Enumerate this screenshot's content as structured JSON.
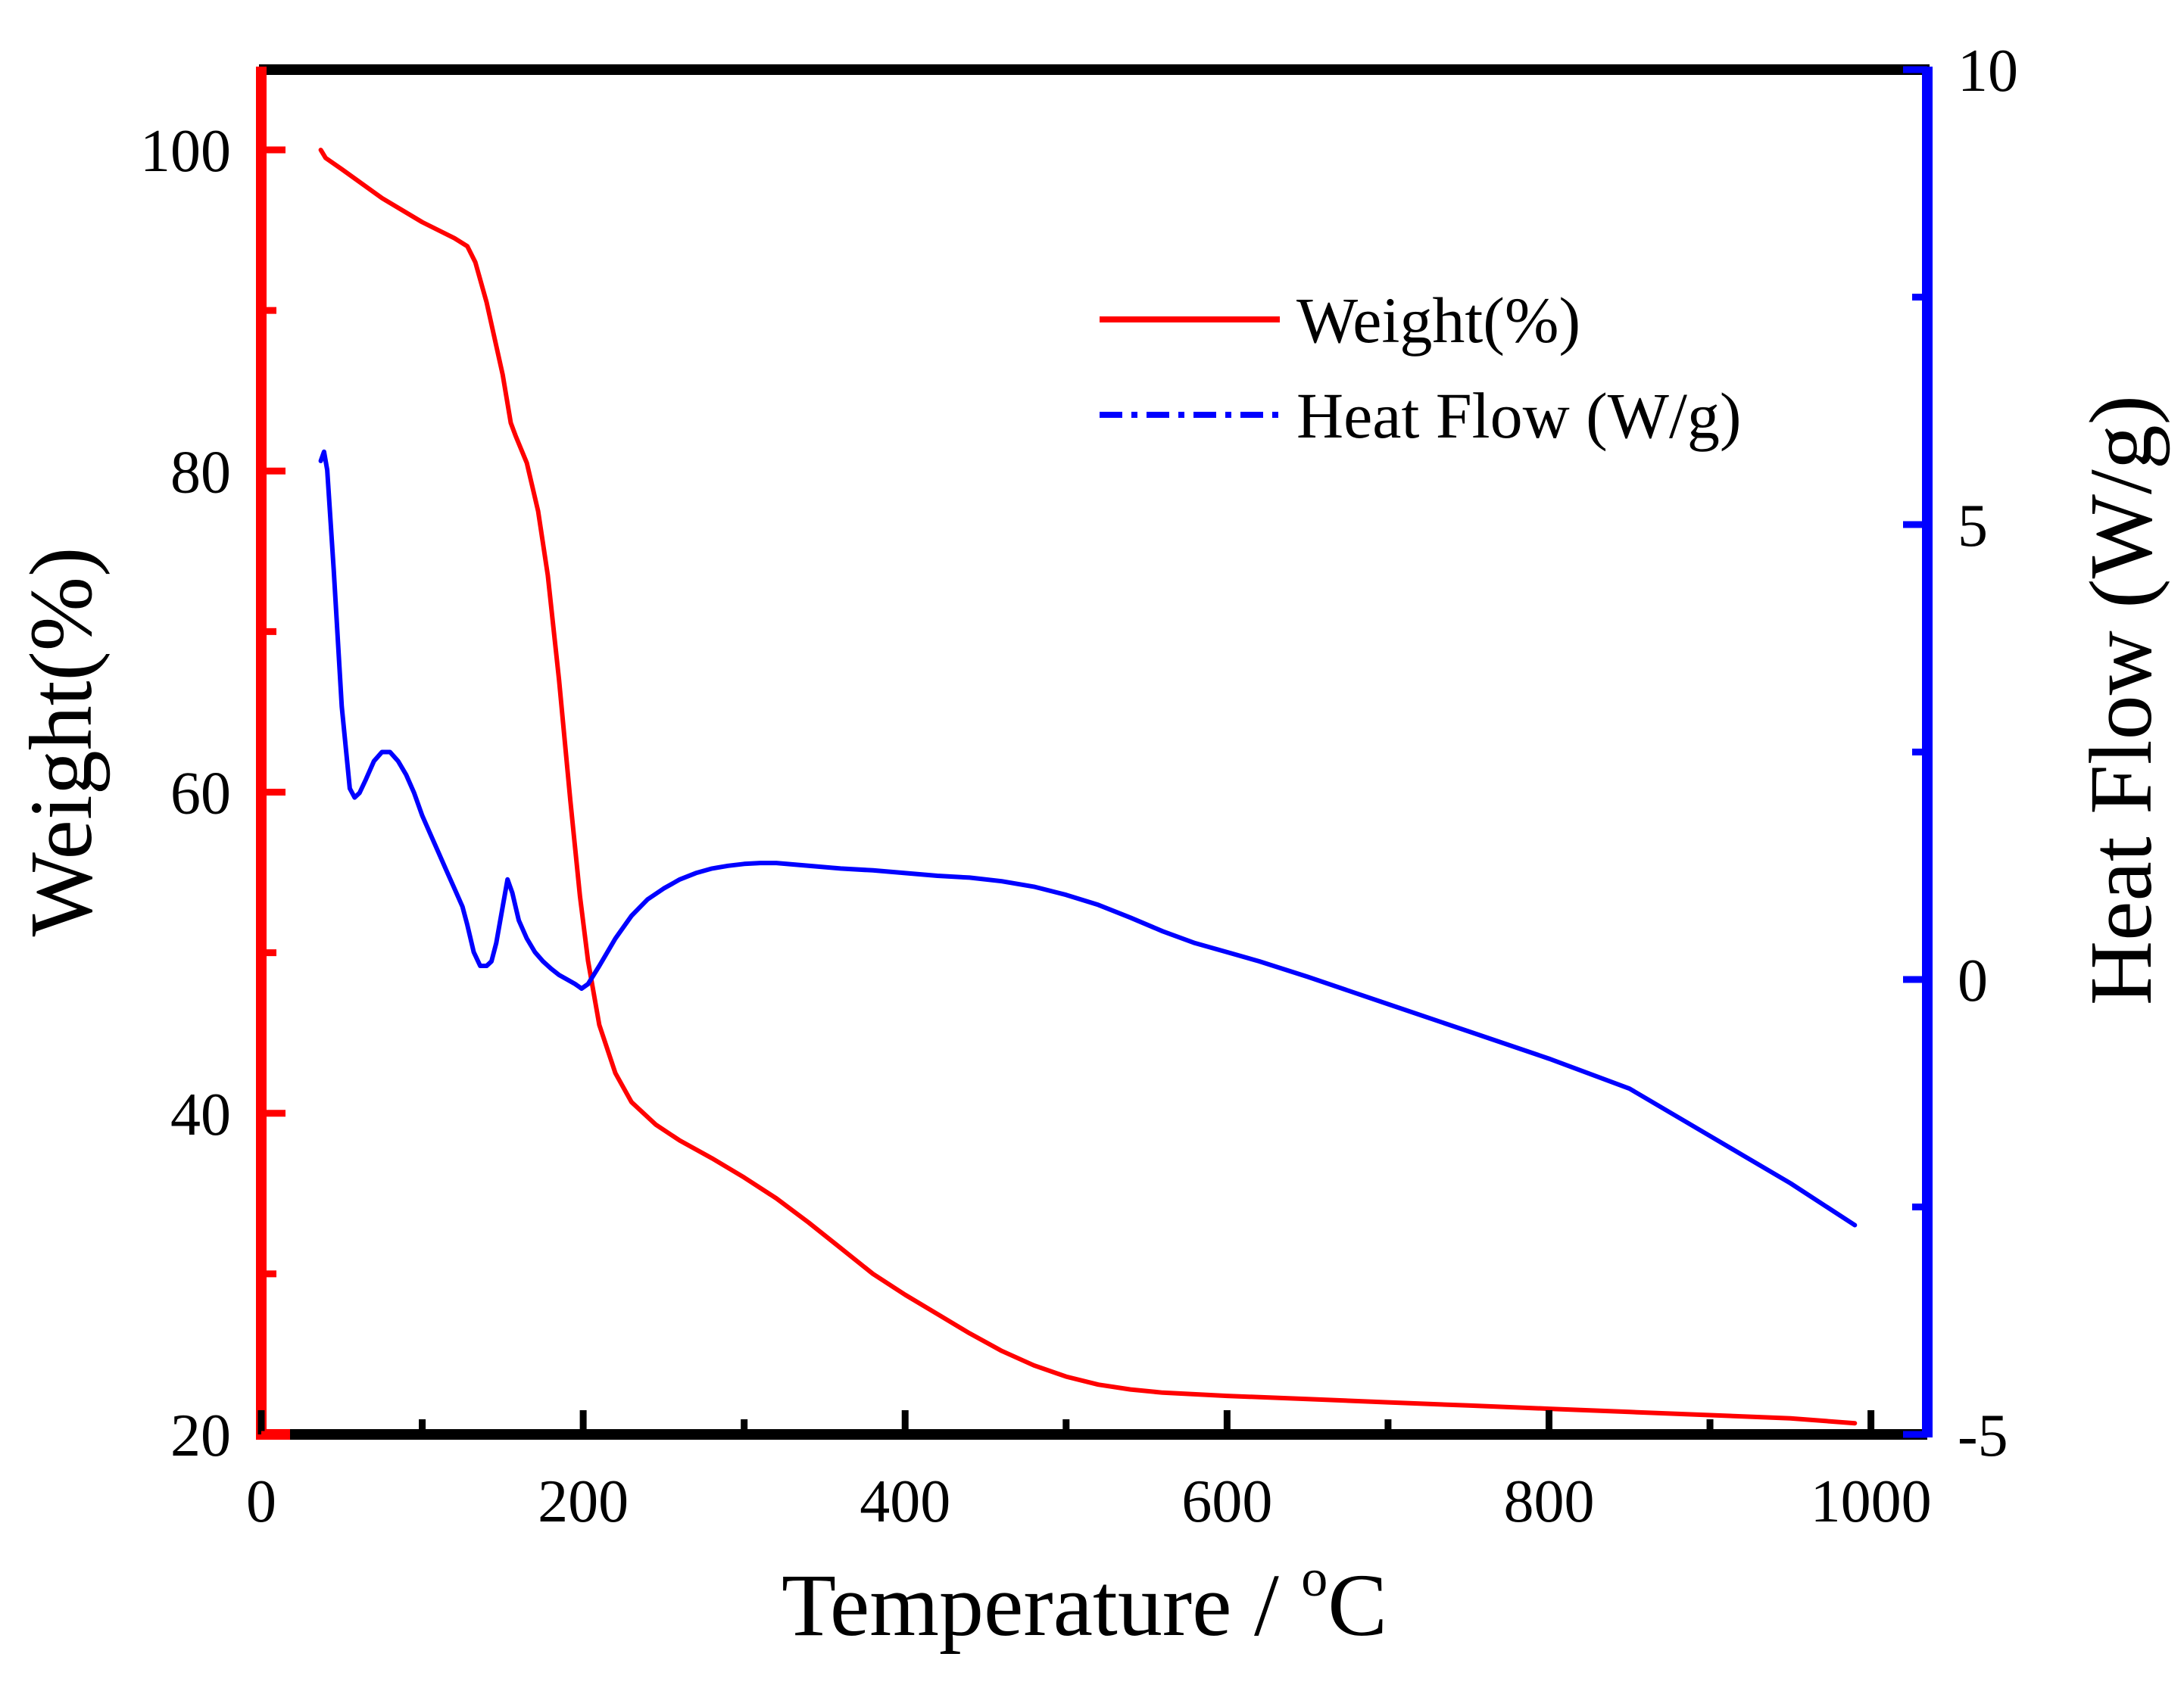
{
  "chart_data": {
    "type": "line",
    "title": "",
    "xlabel": "Temperature / °C",
    "xlabel_main": "Temperature / ",
    "xlabel_degree": "o",
    "xlabel_unit": "C",
    "ylabel": "Weight(%)",
    "y2label": "Heat Flow (W/g)",
    "xlim": [
      0,
      1035
    ],
    "ylim": [
      20,
      105
    ],
    "y2lim": [
      -5,
      10
    ],
    "xticks": [
      0,
      200,
      400,
      600,
      800,
      1000
    ],
    "xtick_labels": [
      "0",
      "200",
      "400",
      "600",
      "800",
      "1000"
    ],
    "yticks": [
      20,
      40,
      60,
      80,
      100
    ],
    "ytick_labels": [
      "20",
      "40",
      "60",
      "80",
      "100"
    ],
    "y2ticks": [
      -5,
      0,
      5,
      10
    ],
    "y2tick_labels": [
      "-5",
      "0",
      "5",
      "10"
    ],
    "grid": false,
    "legend_position": "top-right",
    "colors": {
      "left_axis": "#ff0000",
      "right_axis": "#0000ff",
      "frame": "#000000"
    },
    "series": [
      {
        "name": "Weight(%)",
        "axis": "left",
        "color": "#ff0000",
        "style": "solid",
        "x": [
          37,
          40,
          50,
          75,
          100,
          120,
          128,
          133,
          140,
          150,
          155,
          158,
          165,
          172,
          178,
          185,
          192,
          198,
          203,
          210,
          220,
          230,
          245,
          260,
          280,
          300,
          320,
          340,
          360,
          380,
          400,
          420,
          440,
          460,
          480,
          500,
          520,
          540,
          560,
          600,
          650,
          700,
          750,
          800,
          850,
          900,
          950,
          990
        ],
        "values": [
          100,
          99.5,
          98.8,
          97.0,
          95.5,
          94.5,
          94.0,
          93.0,
          90.5,
          86.0,
          83.0,
          82.2,
          80.5,
          77.5,
          73.5,
          67.0,
          59.5,
          53.5,
          49.5,
          45.5,
          42.5,
          40.7,
          39.3,
          38.3,
          37.2,
          36.0,
          34.7,
          33.2,
          31.6,
          30.0,
          28.7,
          27.5,
          26.3,
          25.2,
          24.3,
          23.6,
          23.1,
          22.8,
          22.6,
          22.4,
          22.2,
          22.0,
          21.8,
          21.6,
          21.4,
          21.2,
          21.0,
          20.7
        ]
      },
      {
        "name": "Heat Flow (W/g)",
        "axis": "right",
        "color": "#0000ff",
        "style": "dash-dot",
        "x": [
          37,
          39,
          41,
          45,
          50,
          55,
          58,
          61,
          65,
          70,
          75,
          80,
          85,
          90,
          95,
          100,
          105,
          110,
          115,
          120,
          125,
          128,
          132,
          136,
          140,
          143,
          146,
          150,
          153,
          156,
          158,
          160,
          165,
          170,
          175,
          180,
          185,
          190,
          195,
          199,
          203,
          210,
          220,
          230,
          240,
          250,
          260,
          270,
          280,
          290,
          300,
          310,
          320,
          340,
          360,
          380,
          400,
          420,
          440,
          460,
          480,
          500,
          520,
          540,
          560,
          580,
          600,
          620,
          650,
          700,
          750,
          800,
          850,
          900,
          950,
          990
        ],
        "values": [
          5.7,
          5.8,
          5.6,
          4.5,
          3.0,
          2.1,
          2.0,
          2.05,
          2.2,
          2.4,
          2.5,
          2.5,
          2.4,
          2.25,
          2.05,
          1.8,
          1.6,
          1.4,
          1.2,
          1.0,
          0.8,
          0.6,
          0.3,
          0.15,
          0.15,
          0.2,
          0.4,
          0.8,
          1.1,
          0.95,
          0.8,
          0.65,
          0.45,
          0.3,
          0.2,
          0.12,
          0.05,
          0.0,
          -0.05,
          -0.1,
          -0.05,
          0.15,
          0.45,
          0.7,
          0.88,
          1.0,
          1.1,
          1.17,
          1.22,
          1.25,
          1.27,
          1.28,
          1.28,
          1.25,
          1.22,
          1.2,
          1.17,
          1.14,
          1.12,
          1.08,
          1.02,
          0.93,
          0.82,
          0.68,
          0.53,
          0.4,
          0.3,
          0.2,
          0.03,
          -0.27,
          -0.57,
          -0.87,
          -1.2,
          -1.72,
          -2.24,
          -2.7
        ]
      }
    ]
  }
}
